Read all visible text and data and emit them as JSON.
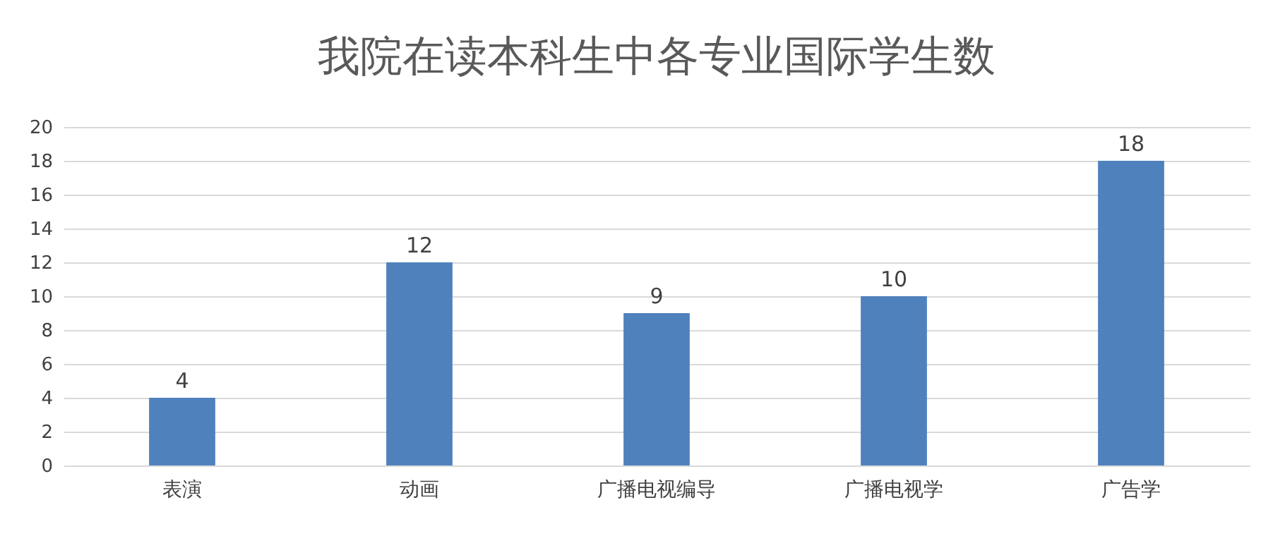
{
  "chart_data": {
    "type": "bar",
    "title": "我院在读本科生中各专业国际学生数",
    "categories": [
      "表演",
      "动画",
      "广播电视编导",
      "广播电视学",
      "广告学"
    ],
    "values": [
      4,
      12,
      9,
      10,
      18
    ],
    "color": "#4f81bd",
    "ylim": [
      0,
      20
    ],
    "yticks": [
      0,
      2,
      4,
      6,
      8,
      10,
      12,
      14,
      16,
      18,
      20
    ],
    "grid": "y",
    "data_labels": true
  }
}
